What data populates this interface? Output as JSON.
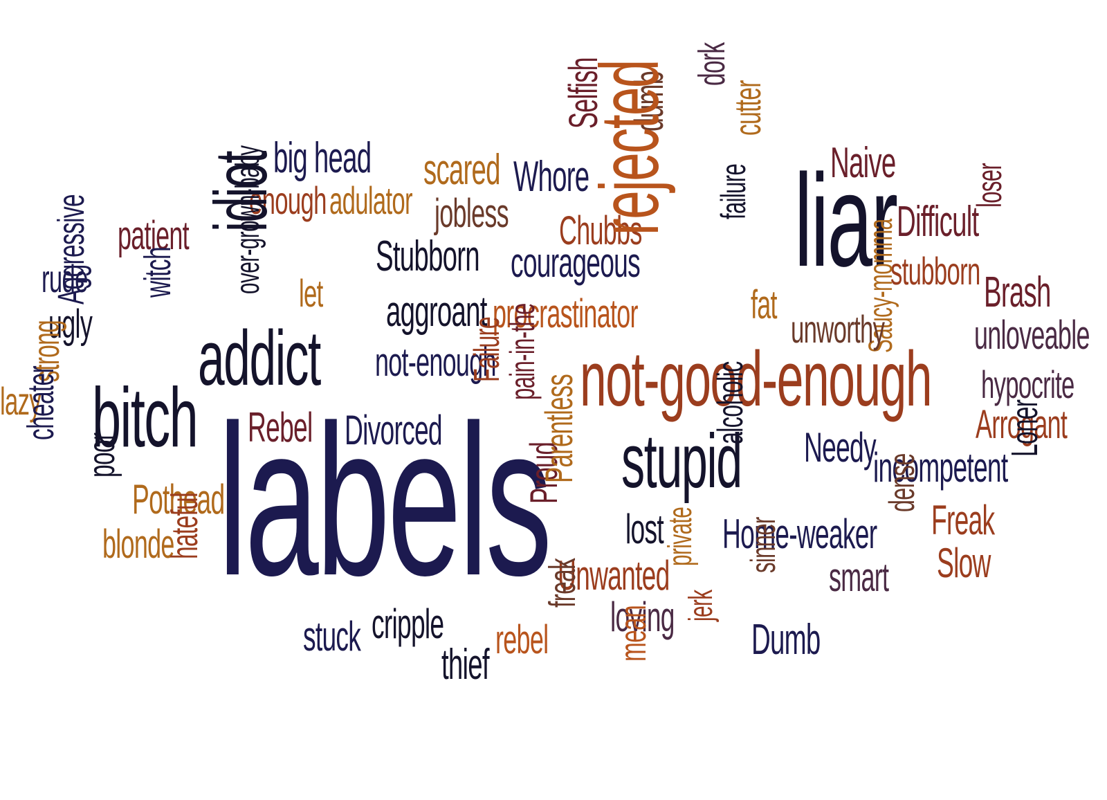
{
  "palette": {
    "navy": "#1c1a4f",
    "ink": "#14132b",
    "maroon": "#6a1f2a",
    "brick": "#9b3d1e",
    "rust": "#b8541c",
    "amber": "#b06a1c",
    "brown": "#6a3a2a",
    "plum": "#4a2a44"
  },
  "words": [
    {
      "text": "big head",
      "color": "#1c1a4f"
    },
    {
      "text": "scared",
      "color": "#b06a1c"
    },
    {
      "text": "Whore",
      "color": "#1c1a4f"
    },
    {
      "text": "Selfish",
      "color": "#6a1f2a"
    },
    {
      "text": "dumb",
      "color": "#6a3a2a"
    },
    {
      "text": "dork",
      "color": "#4a2a44"
    },
    {
      "text": "cutter",
      "color": "#b06a1c"
    },
    {
      "text": "Naive",
      "color": "#6a1f2a"
    },
    {
      "text": "enough",
      "color": "#9b3d1e"
    },
    {
      "text": "adulator",
      "color": "#b06a1c"
    },
    {
      "text": "jobless",
      "color": "#6a3a2a"
    },
    {
      "text": "liar",
      "color": "#14132b"
    },
    {
      "text": "Difficult",
      "color": "#6a1f2a"
    },
    {
      "text": "loser",
      "color": "#6a1f2a"
    },
    {
      "text": "patient",
      "color": "#6a1f2a"
    },
    {
      "text": "Chubbs",
      "color": "#9b3d1e"
    },
    {
      "text": "rejected",
      "color": "#b8541c"
    },
    {
      "text": "failure",
      "color": "#14132b"
    },
    {
      "text": "idiot",
      "color": "#14132b"
    },
    {
      "text": "over-grown-baby",
      "color": "#14132b"
    },
    {
      "text": "Stubborn",
      "color": "#14132b"
    },
    {
      "text": "courageous",
      "color": "#1c1a4f"
    },
    {
      "text": "stubborn",
      "color": "#9b3d1e"
    },
    {
      "text": "rude",
      "color": "#1c1a4f"
    },
    {
      "text": "Aggressive",
      "color": "#1c1a4f"
    },
    {
      "text": "Brash",
      "color": "#6a1f2a"
    },
    {
      "text": "let",
      "color": "#b06a1c"
    },
    {
      "text": "witch",
      "color": "#1c1a4f"
    },
    {
      "text": "aggroant",
      "color": "#14132b"
    },
    {
      "text": "procrastinator",
      "color": "#b8541c"
    },
    {
      "text": "fat",
      "color": "#b06a1c"
    },
    {
      "text": "ugly",
      "color": "#14132b"
    },
    {
      "text": "Saucy-momma",
      "color": "#b06a1c"
    },
    {
      "text": "unworthy",
      "color": "#6a3a2a"
    },
    {
      "text": "unloveable",
      "color": "#4a2a44"
    },
    {
      "text": "addict",
      "color": "#14132b"
    },
    {
      "text": "not-enough",
      "color": "#1c1a4f"
    },
    {
      "text": "not-good-enough",
      "color": "#9b3d1e"
    },
    {
      "text": "hypocrite",
      "color": "#4a2a44"
    },
    {
      "text": "lazy",
      "color": "#b06a1c"
    },
    {
      "text": "strong",
      "color": "#b06a1c"
    },
    {
      "text": "bitch",
      "color": "#14132b"
    },
    {
      "text": "Failure",
      "color": "#9b3d1e"
    },
    {
      "text": "pain-in-the",
      "color": "#6a1f2a"
    },
    {
      "text": "Arrogant",
      "color": "#9b3d1e"
    },
    {
      "text": "Rebel",
      "color": "#6a1f2a"
    },
    {
      "text": "Divorced",
      "color": "#1c1a4f"
    },
    {
      "text": "alcoholic",
      "color": "#14132b"
    },
    {
      "text": "stupid",
      "color": "#14132b"
    },
    {
      "text": "Needy",
      "color": "#1c1a4f"
    },
    {
      "text": "incompetent",
      "color": "#1c1a4f"
    },
    {
      "text": "Loner",
      "color": "#14132b"
    },
    {
      "text": "cheater",
      "color": "#1c1a4f"
    },
    {
      "text": "labels",
      "color": "#1c1a4f"
    },
    {
      "text": "poor",
      "color": "#14132b"
    },
    {
      "text": "Pothead",
      "color": "#b06a1c"
    },
    {
      "text": "Proud",
      "color": "#6a1f2a"
    },
    {
      "text": "Parentless",
      "color": "#b06a1c"
    },
    {
      "text": "lost",
      "color": "#14132b"
    },
    {
      "text": "Home-weaker",
      "color": "#1c1a4f"
    },
    {
      "text": "dense",
      "color": "#6a3a2a"
    },
    {
      "text": "Freak",
      "color": "#9b3d1e"
    },
    {
      "text": "blonde",
      "color": "#b06a1c"
    },
    {
      "text": "hateful",
      "color": "#9b3d1e"
    },
    {
      "text": "private",
      "color": "#b06a1c"
    },
    {
      "text": "sinner",
      "color": "#6a3a2a"
    },
    {
      "text": "Slow",
      "color": "#9b3d1e"
    },
    {
      "text": "Unwanted",
      "color": "#9b3d1e"
    },
    {
      "text": "smart",
      "color": "#4a2a44"
    },
    {
      "text": "freak",
      "color": "#6a3a2a"
    },
    {
      "text": "loving",
      "color": "#4a2a44"
    },
    {
      "text": "jerk",
      "color": "#9b3d1e"
    },
    {
      "text": "stuck",
      "color": "#1c1a4f"
    },
    {
      "text": "cripple",
      "color": "#14132b"
    },
    {
      "text": "Dumb",
      "color": "#1c1a4f"
    },
    {
      "text": "rebel",
      "color": "#b8541c"
    },
    {
      "text": "thief",
      "color": "#14132b"
    },
    {
      "text": "mean",
      "color": "#b8541c"
    }
  ]
}
